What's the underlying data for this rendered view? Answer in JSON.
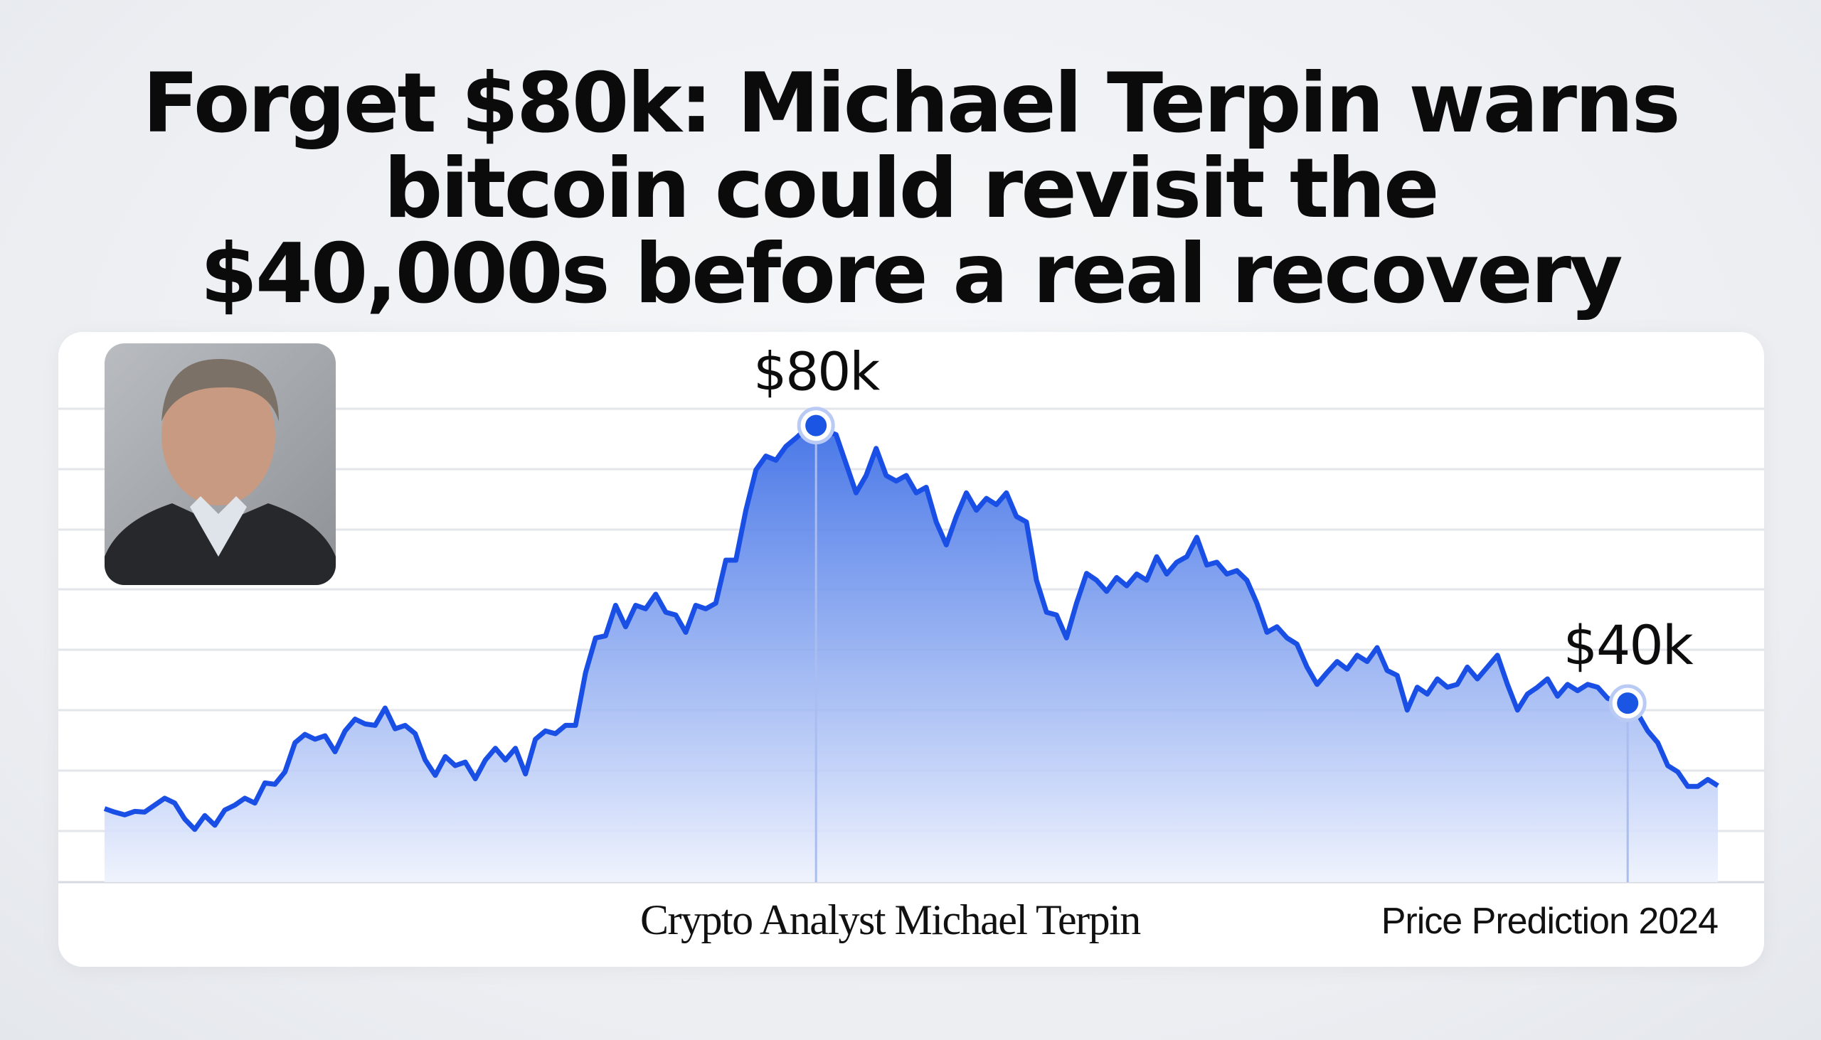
{
  "headline": {
    "lines": [
      "Forget $80k: Michael Terpin warns",
      "bitcoin could revisit the",
      "$40,000s before a real recovery"
    ]
  },
  "photo": {
    "alt": "Michael Terpin portrait"
  },
  "caption": "Crypto Analyst Michael Terpin",
  "subcaption": "Price Prediction 2024",
  "colors": {
    "line": "#1a4fe6",
    "fill_top": "#4f7fe8",
    "fill_bottom": "#eef2fd",
    "grid": "#e3e5ea",
    "background": "#eceef2"
  },
  "chart_data": {
    "type": "area",
    "title": "",
    "xlabel": "",
    "ylabel": "",
    "units": "$k",
    "ylim": [
      14.2,
      90
    ],
    "grid": true,
    "annotations": [
      {
        "label": "$80k",
        "value": 80
      },
      {
        "label": "$40k",
        "value": 40
      }
    ],
    "values": [
      24.8,
      24.3,
      23.9,
      24.4,
      24.3,
      25.3,
      26.3,
      25.6,
      23.3,
      21.8,
      23.8,
      22.4,
      24.6,
      25.3,
      26.3,
      25.6,
      28.5,
      28.3,
      30.1,
      34.3,
      35.5,
      34.8,
      35.3,
      33.0,
      36.0,
      37.7,
      37.0,
      36.8,
      39.3,
      36.3,
      36.8,
      35.6,
      31.8,
      29.6,
      32.3,
      31.0,
      31.5,
      29.1,
      31.8,
      33.5,
      31.8,
      33.5,
      29.8,
      34.8,
      36.0,
      35.6,
      36.8,
      36.8,
      44.4,
      49.4,
      49.7,
      54.1,
      51.0,
      54.1,
      53.6,
      55.7,
      53.1,
      52.7,
      50.2,
      54.1,
      53.6,
      54.4,
      60.6,
      60.6,
      67.8,
      73.6,
      75.6,
      75.0,
      77.0,
      78.2,
      79.5,
      80.0,
      79.2,
      78.7,
      74.5,
      70.3,
      72.8,
      76.7,
      72.8,
      72.0,
      72.8,
      70.3,
      71.1,
      66.1,
      62.8,
      66.9,
      70.3,
      67.8,
      69.5,
      68.6,
      70.3,
      66.9,
      66.1,
      57.7,
      53.1,
      52.7,
      49.4,
      54.4,
      58.7,
      57.7,
      56.1,
      58.1,
      56.9,
      58.6,
      57.7,
      61.1,
      58.6,
      60.3,
      61.1,
      63.9,
      59.9,
      60.3,
      58.6,
      59.1,
      57.7,
      54.4,
      50.2,
      51.0,
      49.4,
      48.5,
      45.2,
      42.7,
      44.4,
      46.0,
      44.9,
      46.9,
      46.0,
      48.0,
      44.7,
      44.0,
      39.0,
      42.3,
      41.3,
      43.5,
      42.3,
      42.7,
      45.2,
      43.5,
      45.2,
      46.9,
      42.7,
      39.0,
      41.3,
      42.3,
      43.5,
      41.0,
      42.7,
      41.8,
      42.7,
      42.3,
      40.7,
      40.2,
      40.0,
      38.5,
      36.0,
      34.3,
      31.0,
      30.1,
      28.0,
      28.0,
      29.0,
      28.1
    ]
  }
}
